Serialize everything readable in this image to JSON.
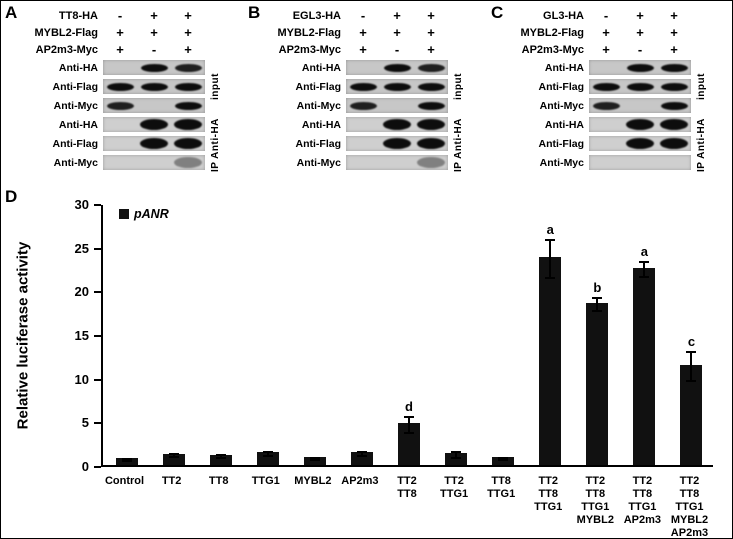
{
  "figure": {
    "panel_d_label": "D"
  },
  "blot_panels": [
    {
      "label": "A",
      "construct_rows": [
        {
          "name": "TT8-HA",
          "signs": [
            "-",
            "+",
            "+"
          ]
        },
        {
          "name": "MYBL2-Flag",
          "signs": [
            "+",
            "+",
            "+"
          ]
        },
        {
          "name": "AP2m3-Myc",
          "signs": [
            "+",
            "-",
            "+"
          ]
        }
      ],
      "blot_rows": [
        {
          "antibody": "Anti-HA",
          "group": "input",
          "bands": [
            0,
            1,
            0.9
          ]
        },
        {
          "antibody": "Anti-Flag",
          "group": "input",
          "bands": [
            1,
            1,
            1
          ]
        },
        {
          "antibody": "Anti-Myc",
          "group": "input",
          "bands": [
            0.9,
            0,
            1
          ]
        },
        {
          "antibody": "Anti-HA",
          "group": "ip",
          "bands": [
            0,
            1,
            1
          ]
        },
        {
          "antibody": "Anti-Flag",
          "group": "ip",
          "bands": [
            0,
            1,
            1
          ]
        },
        {
          "antibody": "Anti-Myc",
          "group": "ip",
          "bands": [
            0,
            0,
            0.4
          ]
        }
      ],
      "group_labels": [
        "input",
        "IP Anti-HA"
      ]
    },
    {
      "label": "B",
      "construct_rows": [
        {
          "name": "EGL3-HA",
          "signs": [
            "-",
            "+",
            "+"
          ]
        },
        {
          "name": "MYBL2-Flag",
          "signs": [
            "+",
            "+",
            "+"
          ]
        },
        {
          "name": "AP2m3-Myc",
          "signs": [
            "+",
            "-",
            "+"
          ]
        }
      ],
      "blot_rows": [
        {
          "antibody": "Anti-HA",
          "group": "input",
          "bands": [
            0,
            1,
            0.9
          ]
        },
        {
          "antibody": "Anti-Flag",
          "group": "input",
          "bands": [
            1,
            1,
            1
          ]
        },
        {
          "antibody": "Anti-Myc",
          "group": "input",
          "bands": [
            0.9,
            0,
            1
          ]
        },
        {
          "antibody": "Anti-HA",
          "group": "ip",
          "bands": [
            0,
            1,
            1
          ]
        },
        {
          "antibody": "Anti-Flag",
          "group": "ip",
          "bands": [
            0,
            1,
            1
          ]
        },
        {
          "antibody": "Anti-Myc",
          "group": "ip",
          "bands": [
            0,
            0,
            0.4
          ]
        }
      ],
      "group_labels": [
        "input",
        "IP Anti-HA"
      ]
    },
    {
      "label": "C",
      "construct_rows": [
        {
          "name": "GL3-HA",
          "signs": [
            "-",
            "+",
            "+"
          ]
        },
        {
          "name": "MYBL2-Flag",
          "signs": [
            "+",
            "+",
            "+"
          ]
        },
        {
          "name": "AP2m3-Myc",
          "signs": [
            "+",
            "-",
            "+"
          ]
        }
      ],
      "blot_rows": [
        {
          "antibody": "Anti-HA",
          "group": "input",
          "bands": [
            0,
            1,
            1
          ]
        },
        {
          "antibody": "Anti-Flag",
          "group": "input",
          "bands": [
            1,
            1,
            1
          ]
        },
        {
          "antibody": "Anti-Myc",
          "group": "input",
          "bands": [
            0.9,
            0,
            1
          ]
        },
        {
          "antibody": "Anti-HA",
          "group": "ip",
          "bands": [
            0,
            1,
            1
          ]
        },
        {
          "antibody": "Anti-Flag",
          "group": "ip",
          "bands": [
            0,
            1,
            1
          ]
        },
        {
          "antibody": "Anti-Myc",
          "group": "ip",
          "bands": [
            0,
            0,
            0
          ]
        }
      ],
      "group_labels": [
        "input",
        "IP Anti-HA"
      ]
    }
  ],
  "chart_data": {
    "type": "bar",
    "legend_label": "pANR",
    "bar_color": "#111111",
    "ylabel": "Relative luciferase activity",
    "ylim": [
      0,
      30
    ],
    "yticks": [
      0,
      5,
      10,
      15,
      20,
      25,
      30
    ],
    "categories": [
      [
        "Control"
      ],
      [
        "TT2"
      ],
      [
        "TT8"
      ],
      [
        "TTG1"
      ],
      [
        "MYBL2"
      ],
      [
        "AP2m3"
      ],
      [
        "TT2",
        "TT8"
      ],
      [
        "TT2",
        "TTG1"
      ],
      [
        "TT8",
        "TTG1"
      ],
      [
        "TT2",
        "TT8",
        "TTG1"
      ],
      [
        "TT2",
        "TT8",
        "TTG1",
        "MYBL2"
      ],
      [
        "TT2",
        "TT8",
        "TTG1",
        "AP2m3"
      ],
      [
        "TT2",
        "TT8",
        "TTG1",
        "MYBL2",
        "AP2m3"
      ]
    ],
    "values": [
      0.8,
      1.3,
      1.2,
      1.5,
      0.9,
      1.5,
      4.8,
      1.4,
      0.9,
      23.8,
      18.6,
      22.6,
      11.5
    ],
    "errors": [
      0.15,
      0.2,
      0.2,
      0.2,
      0.15,
      0.25,
      0.9,
      0.35,
      0.15,
      2.2,
      0.7,
      0.9,
      1.7
    ],
    "sig_letters": [
      "",
      "",
      "",
      "",
      "",
      "",
      "d",
      "",
      "",
      "a",
      "b",
      "a",
      "c"
    ]
  }
}
